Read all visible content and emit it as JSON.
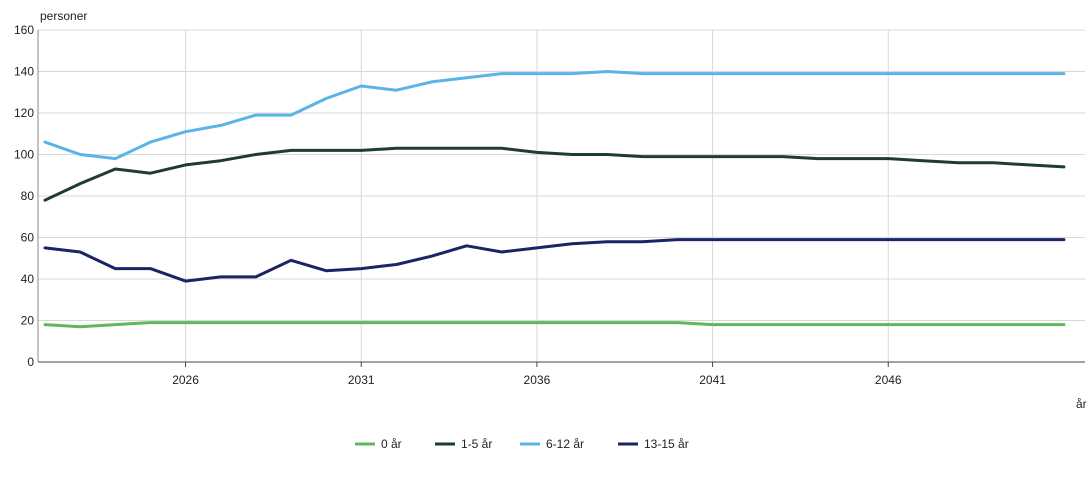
{
  "chart_data": {
    "type": "line",
    "ylabel": "personer",
    "xlabel": "år",
    "ylim": [
      0,
      160
    ],
    "yticks": [
      0,
      20,
      40,
      60,
      80,
      100,
      120,
      140,
      160
    ],
    "xlim": [
      2021.8,
      2051.6
    ],
    "xticks": [
      2026,
      2031,
      2036,
      2041,
      2046
    ],
    "grid": true,
    "legend_position": "bottom",
    "x": [
      2022,
      2023,
      2024,
      2025,
      2026,
      2027,
      2028,
      2029,
      2030,
      2031,
      2032,
      2033,
      2034,
      2035,
      2036,
      2037,
      2038,
      2039,
      2040,
      2041,
      2042,
      2043,
      2044,
      2045,
      2046,
      2047,
      2048,
      2049,
      2050,
      2051
    ],
    "series": [
      {
        "name": "0 år",
        "color": "#5cb85c",
        "values": [
          18,
          17,
          18,
          19,
          19,
          19,
          19,
          19,
          19,
          19,
          19,
          19,
          19,
          19,
          19,
          19,
          19,
          19,
          19,
          18,
          18,
          18,
          18,
          18,
          18,
          18,
          18,
          18,
          18,
          18
        ]
      },
      {
        "name": "1-5 år",
        "color": "#1f3d2b",
        "values": [
          78,
          86,
          93,
          91,
          95,
          97,
          100,
          102,
          102,
          102,
          103,
          103,
          103,
          103,
          101,
          100,
          100,
          99,
          99,
          99,
          99,
          99,
          98,
          98,
          98,
          97,
          96,
          96,
          95,
          94
        ]
      },
      {
        "name": "6-12 år",
        "color": "#5ab4e5",
        "values": [
          106,
          100,
          98,
          106,
          111,
          114,
          119,
          119,
          127,
          133,
          131,
          135,
          137,
          139,
          139,
          139,
          140,
          139,
          139,
          139,
          139,
          139,
          139,
          139,
          139,
          139,
          139,
          139,
          139,
          139
        ]
      },
      {
        "name": "13-15 år",
        "color": "#1a2466",
        "values": [
          55,
          53,
          45,
          45,
          39,
          41,
          41,
          49,
          44,
          45,
          47,
          51,
          56,
          53,
          55,
          57,
          58,
          58,
          59,
          59,
          59,
          59,
          59,
          59,
          59,
          59,
          59,
          59,
          59,
          59
        ]
      }
    ]
  }
}
